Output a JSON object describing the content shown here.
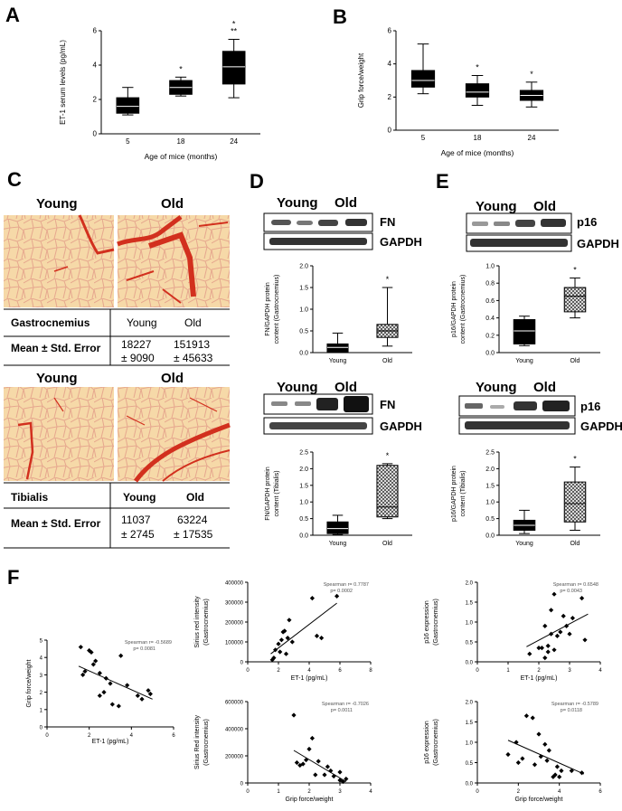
{
  "panels": {
    "A": "A",
    "B": "B",
    "C": "C",
    "D": "D",
    "E": "E",
    "F": "F"
  },
  "chart_data": [
    {
      "id": "A",
      "type": "box",
      "title": "",
      "ylabel": "ET-1 serum levels (pg/mL)",
      "xlabel": "Age of mice (months)",
      "ylim": [
        0,
        6
      ],
      "yticks": [
        "0",
        "2",
        "4",
        "6"
      ],
      "categories": [
        "5",
        "18",
        "24"
      ],
      "boxes": [
        {
          "min": 1.1,
          "q1": 1.2,
          "median": 1.6,
          "q3": 2.1,
          "max": 2.7
        },
        {
          "min": 2.2,
          "q1": 2.3,
          "median": 2.7,
          "q3": 3.1,
          "max": 3.3
        },
        {
          "min": 2.1,
          "q1": 2.9,
          "median": 3.9,
          "q3": 4.8,
          "max": 5.5
        }
      ],
      "sig": [
        "",
        "*",
        "*\n**"
      ],
      "fill": "#000000"
    },
    {
      "id": "B",
      "type": "box",
      "ylabel": "Grip force/weight",
      "xlabel": "Age of mice (months)",
      "ylim": [
        0,
        6
      ],
      "yticks": [
        "0",
        "2",
        "4",
        "6"
      ],
      "categories": [
        "5",
        "18",
        "24"
      ],
      "boxes": [
        {
          "min": 2.2,
          "q1": 2.6,
          "median": 3.0,
          "q3": 3.6,
          "max": 5.2
        },
        {
          "min": 1.5,
          "q1": 2.0,
          "median": 2.3,
          "q3": 2.8,
          "max": 3.3
        },
        {
          "min": 1.4,
          "q1": 1.8,
          "median": 2.1,
          "q3": 2.4,
          "max": 2.9
        }
      ],
      "sig": [
        "",
        "*",
        "*"
      ],
      "fill": "#000000"
    },
    {
      "id": "D1",
      "type": "box",
      "ylabel": "FN/GAPDH protein\ncontent (Gastrocnemius)",
      "xlabel": "",
      "ylim": [
        0,
        2
      ],
      "yticks": [
        "0.0",
        "0.5",
        "1.0",
        "1.5",
        "2.0"
      ],
      "categories": [
        "Young",
        "Old"
      ],
      "boxes": [
        {
          "min": 0.0,
          "q1": 0.02,
          "median": 0.12,
          "q3": 0.2,
          "max": 0.45
        },
        {
          "min": 0.15,
          "q1": 0.35,
          "median": 0.5,
          "q3": 0.65,
          "max": 1.5
        }
      ],
      "sig": [
        "",
        "*"
      ],
      "fill": "pattern"
    },
    {
      "id": "D2",
      "type": "box",
      "ylabel": "FN/GAPDH protein\ncontent (Tibialis)",
      "xlabel": "",
      "ylim": [
        0,
        2.5
      ],
      "yticks": [
        "0.0",
        "0.5",
        "1.0",
        "1.5",
        "2.0",
        "2.5"
      ],
      "categories": [
        "Young",
        "Old"
      ],
      "boxes": [
        {
          "min": 0.02,
          "q1": 0.05,
          "median": 0.2,
          "q3": 0.4,
          "max": 0.6
        },
        {
          "min": 0.5,
          "q1": 0.55,
          "median": 0.85,
          "q3": 2.1,
          "max": 2.15
        }
      ],
      "sig": [
        "",
        "*"
      ],
      "fill": "pattern"
    },
    {
      "id": "E1",
      "type": "box",
      "ylabel": "p16/GAPDH protein\ncontent (Gastrocnemius)",
      "xlabel": "",
      "ylim": [
        0,
        1
      ],
      "yticks": [
        "0.0",
        "0.2",
        "0.4",
        "0.6",
        "0.8",
        "1.0"
      ],
      "categories": [
        "Young",
        "Old"
      ],
      "boxes": [
        {
          "min": 0.08,
          "q1": 0.1,
          "median": 0.25,
          "q3": 0.38,
          "max": 0.42
        },
        {
          "min": 0.4,
          "q1": 0.47,
          "median": 0.65,
          "q3": 0.75,
          "max": 0.86
        }
      ],
      "sig": [
        "",
        "*"
      ],
      "fill": "pattern"
    },
    {
      "id": "E2",
      "type": "box",
      "ylabel": "p16/GAPDH protein\ncontent (Tibialis)",
      "xlabel": "",
      "ylim": [
        0,
        2.5
      ],
      "yticks": [
        "0.0",
        "0.5",
        "1.0",
        "1.5",
        "2.0",
        "2.5"
      ],
      "categories": [
        "Young",
        "Old"
      ],
      "boxes": [
        {
          "min": 0.05,
          "q1": 0.15,
          "median": 0.3,
          "q3": 0.45,
          "max": 0.75
        },
        {
          "min": 0.15,
          "q1": 0.4,
          "median": 0.95,
          "q3": 1.6,
          "max": 2.05
        }
      ],
      "sig": [
        "",
        "*"
      ],
      "fill": "pattern"
    },
    {
      "id": "F1",
      "type": "scatter",
      "xlabel": "ET-1 (pg/mL)",
      "ylabel": "Grip force/weight",
      "xlim": [
        0,
        6
      ],
      "ylim": [
        0,
        5
      ],
      "xticks": [
        "0",
        "2",
        "4",
        "6"
      ],
      "yticks": [
        "0",
        "1",
        "2",
        "3",
        "4",
        "5"
      ],
      "annotation": [
        "Spearman r= -0.5689",
        "p= 0.0081"
      ],
      "fit": [
        [
          1.5,
          3.5
        ],
        [
          5,
          1.6
        ]
      ],
      "points": [
        [
          1.6,
          4.6
        ],
        [
          1.7,
          3.0
        ],
        [
          1.8,
          3.2
        ],
        [
          2.0,
          4.4
        ],
        [
          2.1,
          4.3
        ],
        [
          2.2,
          3.6
        ],
        [
          2.3,
          3.8
        ],
        [
          2.5,
          3.1
        ],
        [
          2.5,
          1.8
        ],
        [
          2.7,
          2.0
        ],
        [
          2.8,
          2.8
        ],
        [
          3.0,
          2.5
        ],
        [
          3.1,
          1.3
        ],
        [
          3.4,
          1.2
        ],
        [
          3.5,
          4.1
        ],
        [
          3.8,
          2.4
        ],
        [
          4.3,
          1.8
        ],
        [
          4.5,
          1.6
        ],
        [
          4.8,
          2.1
        ],
        [
          4.9,
          1.9
        ]
      ]
    },
    {
      "id": "F2",
      "type": "scatter",
      "xlabel": "ET-1 (pg/mL)",
      "ylabel": "Sirius red intensity\n(Gastrocnemius)",
      "xlim": [
        0,
        8
      ],
      "ylim": [
        0,
        400000
      ],
      "xticks": [
        "0",
        "2",
        "4",
        "6",
        "8"
      ],
      "yticks": [
        "0",
        "100000",
        "200000",
        "300000",
        "400000"
      ],
      "annotation": [
        "Spearman r= 0.7787",
        "p= 0.0002"
      ],
      "fit": [
        [
          1.5,
          40000
        ],
        [
          5.8,
          295000
        ]
      ],
      "points": [
        [
          1.6,
          10000
        ],
        [
          1.7,
          20000
        ],
        [
          1.8,
          60000
        ],
        [
          2.0,
          90000
        ],
        [
          2.1,
          50000
        ],
        [
          2.2,
          110000
        ],
        [
          2.3,
          150000
        ],
        [
          2.4,
          155000
        ],
        [
          2.5,
          40000
        ],
        [
          2.6,
          120000
        ],
        [
          2.7,
          210000
        ],
        [
          2.9,
          100000
        ],
        [
          4.2,
          320000
        ],
        [
          4.5,
          130000
        ],
        [
          4.8,
          120000
        ],
        [
          5.8,
          330000
        ]
      ]
    },
    {
      "id": "F3",
      "type": "scatter",
      "xlabel": "ET-1 (pg/mL)",
      "ylabel": "p16 expression\n(Gastrocnemius)",
      "xlim": [
        0,
        4
      ],
      "ylim": [
        0,
        2
      ],
      "xticks": [
        "0",
        "1",
        "2",
        "3",
        "4"
      ],
      "yticks": [
        "0.0",
        "0.5",
        "1.0",
        "1.5",
        "2.0"
      ],
      "annotation": [
        "Spearman r= 0.6548",
        "p= 0.0043"
      ],
      "fit": [
        [
          1.6,
          0.38
        ],
        [
          3.6,
          1.2
        ]
      ],
      "points": [
        [
          1.7,
          0.2
        ],
        [
          2.0,
          0.35
        ],
        [
          2.1,
          0.35
        ],
        [
          2.2,
          0.9
        ],
        [
          2.2,
          0.1
        ],
        [
          2.3,
          0.4
        ],
        [
          2.3,
          0.25
        ],
        [
          2.4,
          1.3
        ],
        [
          2.4,
          0.7
        ],
        [
          2.5,
          1.7
        ],
        [
          2.5,
          0.3
        ],
        [
          2.6,
          0.65
        ],
        [
          2.7,
          0.75
        ],
        [
          2.8,
          1.15
        ],
        [
          2.9,
          0.9
        ],
        [
          3.0,
          0.7
        ],
        [
          3.4,
          1.6
        ],
        [
          3.5,
          0.55
        ],
        [
          3.1,
          1.1
        ]
      ]
    },
    {
      "id": "F4",
      "type": "scatter",
      "xlabel": "Grip force/weight",
      "ylabel": "Sirius Red intensity\n(Gastrocnemius)",
      "xlim": [
        0,
        4
      ],
      "ylim": [
        0,
        600000
      ],
      "xticks": [
        "0",
        "1",
        "2",
        "3",
        "4"
      ],
      "yticks": [
        "0",
        "200000",
        "400000",
        "600000"
      ],
      "annotation": [
        "Spearman r= -0.7026",
        "p= 0.0011"
      ],
      "fit": [
        [
          1.5,
          240000
        ],
        [
          3.2,
          10000
        ]
      ],
      "points": [
        [
          1.5,
          500000
        ],
        [
          1.6,
          150000
        ],
        [
          1.7,
          130000
        ],
        [
          1.8,
          140000
        ],
        [
          1.9,
          170000
        ],
        [
          2.0,
          250000
        ],
        [
          2.1,
          330000
        ],
        [
          2.3,
          160000
        ],
        [
          2.5,
          60000
        ],
        [
          2.6,
          120000
        ],
        [
          2.7,
          90000
        ],
        [
          2.8,
          50000
        ],
        [
          3.0,
          20000
        ],
        [
          3.0,
          80000
        ],
        [
          3.1,
          10000
        ],
        [
          3.2,
          30000
        ],
        [
          2.2,
          60000
        ]
      ]
    },
    {
      "id": "F5",
      "type": "scatter",
      "xlabel": "Grip force/weight",
      "ylabel": "p16 expression\n(Gastrocnemius)",
      "xlim": [
        0,
        6
      ],
      "ylim": [
        0,
        2
      ],
      "xticks": [
        "0",
        "2",
        "4",
        "6"
      ],
      "yticks": [
        "0.0",
        "0.5",
        "1.0",
        "1.5",
        "2.0"
      ],
      "annotation": [
        "Spearman r= -0.5789",
        "p= 0.0118"
      ],
      "fit": [
        [
          1.5,
          1.05
        ],
        [
          5.2,
          0.22
        ]
      ],
      "points": [
        [
          1.5,
          0.7
        ],
        [
          1.9,
          1.0
        ],
        [
          2.0,
          0.5
        ],
        [
          2.2,
          0.6
        ],
        [
          2.4,
          1.65
        ],
        [
          2.7,
          1.6
        ],
        [
          2.8,
          0.45
        ],
        [
          3.0,
          1.2
        ],
        [
          3.1,
          0.65
        ],
        [
          3.3,
          0.95
        ],
        [
          3.4,
          0.55
        ],
        [
          3.5,
          0.8
        ],
        [
          3.7,
          0.15
        ],
        [
          3.8,
          0.2
        ],
        [
          3.9,
          0.4
        ],
        [
          4.1,
          0.3
        ],
        [
          4.6,
          0.3
        ],
        [
          5.1,
          0.25
        ],
        [
          4.0,
          0.15
        ]
      ]
    }
  ],
  "histology": {
    "young": "Young",
    "old": "Old",
    "gastro_table": {
      "tissue": "Gastrocnemius",
      "young": "Young",
      "old": "Old",
      "row_label": "Mean ± Std. Error",
      "young_mean": "18227",
      "young_se": "± 9090",
      "old_mean": "151913",
      "old_se": "± 45633"
    },
    "tibialis_table": {
      "tissue": "Tibialis",
      "young": "Young",
      "old": "Old",
      "row_label": "Mean ± Std. Error",
      "young_mean": "11037",
      "young_se": "± 2745",
      "old_mean": "63224",
      "old_se": "± 17535"
    }
  },
  "blots": {
    "young": "Young",
    "old": "Old",
    "fn": "FN",
    "p16": "p16",
    "gapdh": "GAPDH"
  }
}
